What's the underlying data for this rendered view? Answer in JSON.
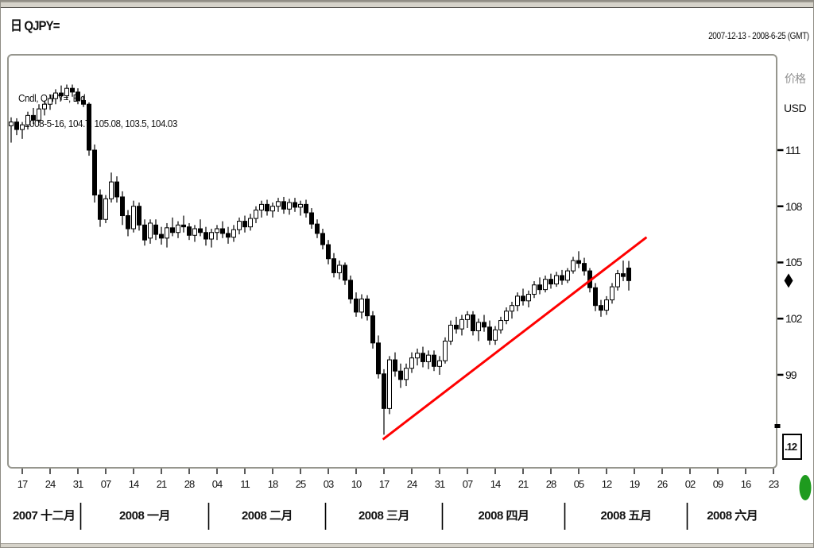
{
  "window": {
    "title": "日 QJPY=",
    "date_range": "2007-12-13 - 2008-6-25 (GMT)"
  },
  "legend": {
    "line1": "Cndl, QJPY=, Bid",
    "line2": "2008-5-16, 104.7, 105.08, 103.5, 104.03"
  },
  "y_axis": {
    "title": "价格",
    "currency": "USD",
    "ticks": [
      111,
      108,
      105,
      102,
      99
    ],
    "last_price_marker": 104.03,
    "bottom_box_value": ".12"
  },
  "x_axis": {
    "week_labels": [
      "17",
      "24",
      "31",
      "07",
      "14",
      "21",
      "28",
      "04",
      "11",
      "18",
      "25",
      "03",
      "10",
      "17",
      "24",
      "31",
      "07",
      "14",
      "21",
      "28",
      "05",
      "12",
      "19",
      "26",
      "02",
      "09",
      "16",
      "23"
    ],
    "months": [
      {
        "label": "2007 十二月",
        "start_index": 0
      },
      {
        "label": "2008 一月",
        "start_index": 13
      },
      {
        "label": "2008 二月",
        "start_index": 36
      },
      {
        "label": "2008 三月",
        "start_index": 57
      },
      {
        "label": "2008 四月",
        "start_index": 78
      },
      {
        "label": "2008 五月",
        "start_index": 100
      },
      {
        "label": "2008 六月",
        "start_index": 122
      }
    ]
  },
  "colors": {
    "trendline": "#ff0000",
    "candle_up_fill": "#ffffff",
    "candle_down_fill": "#000000",
    "candle_stroke": "#000000",
    "green_button": "#1e9b1e",
    "axis_text_gray": "#8e8e8e"
  },
  "chart_data": {
    "type": "candlestick",
    "title": "日 QJPY=",
    "subtitle": "Cndl, QJPY=, Bid",
    "x_range": "2007-12-13 to 2008-6-25 (GMT)",
    "last_bar_date": "2008-5-16",
    "ylabel": "价格 USD",
    "ylim": [
      94,
      116
    ],
    "y_ticks": [
      111,
      108,
      105,
      102,
      99
    ],
    "frequency": "weekdays",
    "start_date": "2007-12-13",
    "ohlc": [
      [
        112.3,
        112.75,
        111.4,
        112.5
      ],
      [
        112.5,
        112.7,
        111.8,
        112.1
      ],
      [
        112.1,
        112.5,
        111.6,
        112.35
      ],
      [
        112.35,
        113.05,
        112.1,
        112.85
      ],
      [
        112.85,
        113.25,
        112.4,
        112.6
      ],
      [
        112.6,
        113.45,
        112.45,
        113.2
      ],
      [
        113.2,
        113.65,
        112.85,
        113.45
      ],
      [
        113.45,
        113.95,
        113.15,
        113.75
      ],
      [
        113.75,
        114.25,
        113.45,
        114.05
      ],
      [
        114.05,
        114.45,
        113.65,
        113.9
      ],
      [
        113.9,
        114.5,
        113.7,
        114.3
      ],
      [
        114.3,
        114.5,
        113.85,
        114.1
      ],
      [
        114.1,
        114.3,
        113.45,
        113.65
      ],
      [
        113.65,
        113.9,
        113.3,
        113.45
      ],
      [
        113.45,
        113.55,
        110.7,
        111.0
      ],
      [
        111.0,
        111.3,
        108.2,
        108.6
      ],
      [
        108.6,
        108.9,
        106.9,
        107.3
      ],
      [
        107.3,
        108.6,
        107.1,
        108.4
      ],
      [
        108.4,
        109.8,
        108.2,
        109.3
      ],
      [
        109.3,
        109.6,
        108.2,
        108.5
      ],
      [
        108.5,
        108.8,
        107.0,
        107.5
      ],
      [
        107.5,
        107.8,
        106.4,
        106.8
      ],
      [
        106.8,
        108.3,
        106.6,
        108.0
      ],
      [
        108.0,
        108.2,
        106.7,
        107.0
      ],
      [
        107.0,
        107.3,
        105.9,
        106.2
      ],
      [
        106.3,
        107.3,
        106.0,
        107.1
      ],
      [
        107.0,
        107.3,
        106.2,
        106.5
      ],
      [
        106.5,
        106.9,
        105.95,
        106.3
      ],
      [
        106.3,
        107.1,
        105.8,
        106.85
      ],
      [
        106.85,
        107.4,
        106.4,
        106.6
      ],
      [
        106.6,
        107.2,
        106.3,
        107.0
      ],
      [
        107.0,
        107.5,
        106.6,
        106.9
      ],
      [
        106.9,
        107.1,
        106.2,
        106.45
      ],
      [
        106.45,
        107.0,
        106.1,
        106.8
      ],
      [
        106.8,
        107.3,
        106.4,
        106.6
      ],
      [
        106.6,
        106.9,
        105.9,
        106.25
      ],
      [
        106.25,
        106.8,
        105.8,
        106.6
      ],
      [
        106.6,
        107.0,
        106.2,
        106.8
      ],
      [
        106.8,
        107.2,
        106.3,
        106.55
      ],
      [
        106.55,
        106.9,
        106.0,
        106.35
      ],
      [
        106.35,
        107.0,
        106.1,
        106.75
      ],
      [
        106.75,
        107.4,
        106.5,
        107.2
      ],
      [
        107.2,
        107.5,
        106.6,
        106.9
      ],
      [
        106.9,
        107.6,
        106.7,
        107.35
      ],
      [
        107.35,
        108.0,
        107.1,
        107.8
      ],
      [
        107.8,
        108.3,
        107.4,
        108.1
      ],
      [
        108.1,
        108.35,
        107.5,
        107.75
      ],
      [
        107.75,
        108.2,
        107.4,
        108.0
      ],
      [
        108.0,
        108.45,
        107.7,
        108.25
      ],
      [
        108.25,
        108.5,
        107.6,
        107.85
      ],
      [
        107.85,
        108.4,
        107.55,
        108.2
      ],
      [
        108.2,
        108.45,
        107.7,
        107.95
      ],
      [
        107.95,
        108.3,
        107.5,
        108.1
      ],
      [
        108.1,
        108.35,
        107.4,
        107.65
      ],
      [
        107.65,
        107.9,
        106.8,
        107.05
      ],
      [
        107.05,
        107.3,
        106.3,
        106.55
      ],
      [
        106.55,
        106.8,
        105.7,
        105.95
      ],
      [
        105.95,
        106.2,
        104.9,
        105.2
      ],
      [
        105.2,
        105.5,
        104.2,
        104.45
      ],
      [
        104.45,
        105.1,
        104.1,
        104.85
      ],
      [
        104.85,
        105.0,
        103.8,
        104.05
      ],
      [
        104.05,
        104.3,
        102.8,
        103.05
      ],
      [
        103.05,
        103.4,
        102.1,
        102.35
      ],
      [
        102.35,
        103.3,
        102.0,
        103.05
      ],
      [
        103.05,
        103.25,
        101.9,
        102.15
      ],
      [
        102.15,
        102.4,
        100.4,
        100.7
      ],
      [
        100.7,
        101.1,
        98.8,
        99.05
      ],
      [
        99.05,
        99.3,
        95.8,
        97.2
      ],
      [
        97.2,
        100.0,
        96.9,
        99.8
      ],
      [
        99.8,
        100.2,
        98.9,
        99.2
      ],
      [
        99.2,
        99.6,
        98.3,
        98.75
      ],
      [
        98.75,
        99.6,
        98.4,
        99.35
      ],
      [
        99.35,
        100.2,
        99.1,
        99.9
      ],
      [
        99.9,
        100.4,
        99.5,
        100.15
      ],
      [
        100.15,
        100.5,
        99.4,
        99.7
      ],
      [
        99.7,
        100.3,
        99.3,
        100.05
      ],
      [
        100.05,
        100.3,
        99.2,
        99.45
      ],
      [
        99.45,
        100.0,
        99.0,
        99.75
      ],
      [
        99.75,
        101.0,
        99.6,
        100.8
      ],
      [
        100.8,
        101.9,
        100.6,
        101.65
      ],
      [
        101.65,
        102.1,
        101.2,
        101.45
      ],
      [
        101.45,
        102.2,
        101.1,
        101.95
      ],
      [
        101.95,
        102.4,
        101.5,
        102.2
      ],
      [
        102.2,
        102.4,
        101.1,
        101.35
      ],
      [
        101.35,
        102.0,
        100.8,
        101.8
      ],
      [
        101.8,
        102.2,
        101.3,
        101.55
      ],
      [
        101.55,
        101.9,
        100.6,
        100.85
      ],
      [
        100.85,
        101.6,
        100.6,
        101.4
      ],
      [
        101.4,
        102.1,
        101.2,
        101.9
      ],
      [
        101.9,
        102.6,
        101.7,
        102.4
      ],
      [
        102.4,
        102.9,
        102.0,
        102.7
      ],
      [
        102.7,
        103.4,
        102.4,
        103.2
      ],
      [
        103.2,
        103.6,
        102.7,
        102.95
      ],
      [
        102.95,
        103.5,
        102.6,
        103.3
      ],
      [
        103.3,
        104.0,
        103.1,
        103.8
      ],
      [
        103.8,
        104.2,
        103.3,
        103.55
      ],
      [
        103.55,
        104.3,
        103.4,
        104.1
      ],
      [
        104.1,
        104.4,
        103.6,
        103.85
      ],
      [
        103.85,
        104.5,
        103.7,
        104.3
      ],
      [
        104.3,
        104.6,
        103.8,
        104.05
      ],
      [
        104.05,
        104.7,
        103.9,
        104.55
      ],
      [
        104.55,
        105.3,
        104.4,
        105.1
      ],
      [
        105.1,
        105.6,
        104.7,
        104.95
      ],
      [
        104.95,
        105.25,
        104.3,
        104.55
      ],
      [
        104.55,
        104.7,
        103.4,
        103.65
      ],
      [
        103.65,
        103.9,
        102.4,
        102.7
      ],
      [
        102.7,
        103.0,
        102.1,
        102.45
      ],
      [
        102.45,
        103.2,
        102.2,
        103.0
      ],
      [
        103.0,
        103.9,
        102.8,
        103.7
      ],
      [
        103.7,
        104.6,
        103.5,
        104.4
      ],
      [
        104.4,
        105.1,
        104.0,
        104.25
      ],
      [
        104.7,
        105.08,
        103.5,
        104.03
      ]
    ],
    "trendline": {
      "x1_index": 66.8,
      "y1_price": 95.55,
      "x2_index": 114.2,
      "y2_price": 106.35
    }
  }
}
